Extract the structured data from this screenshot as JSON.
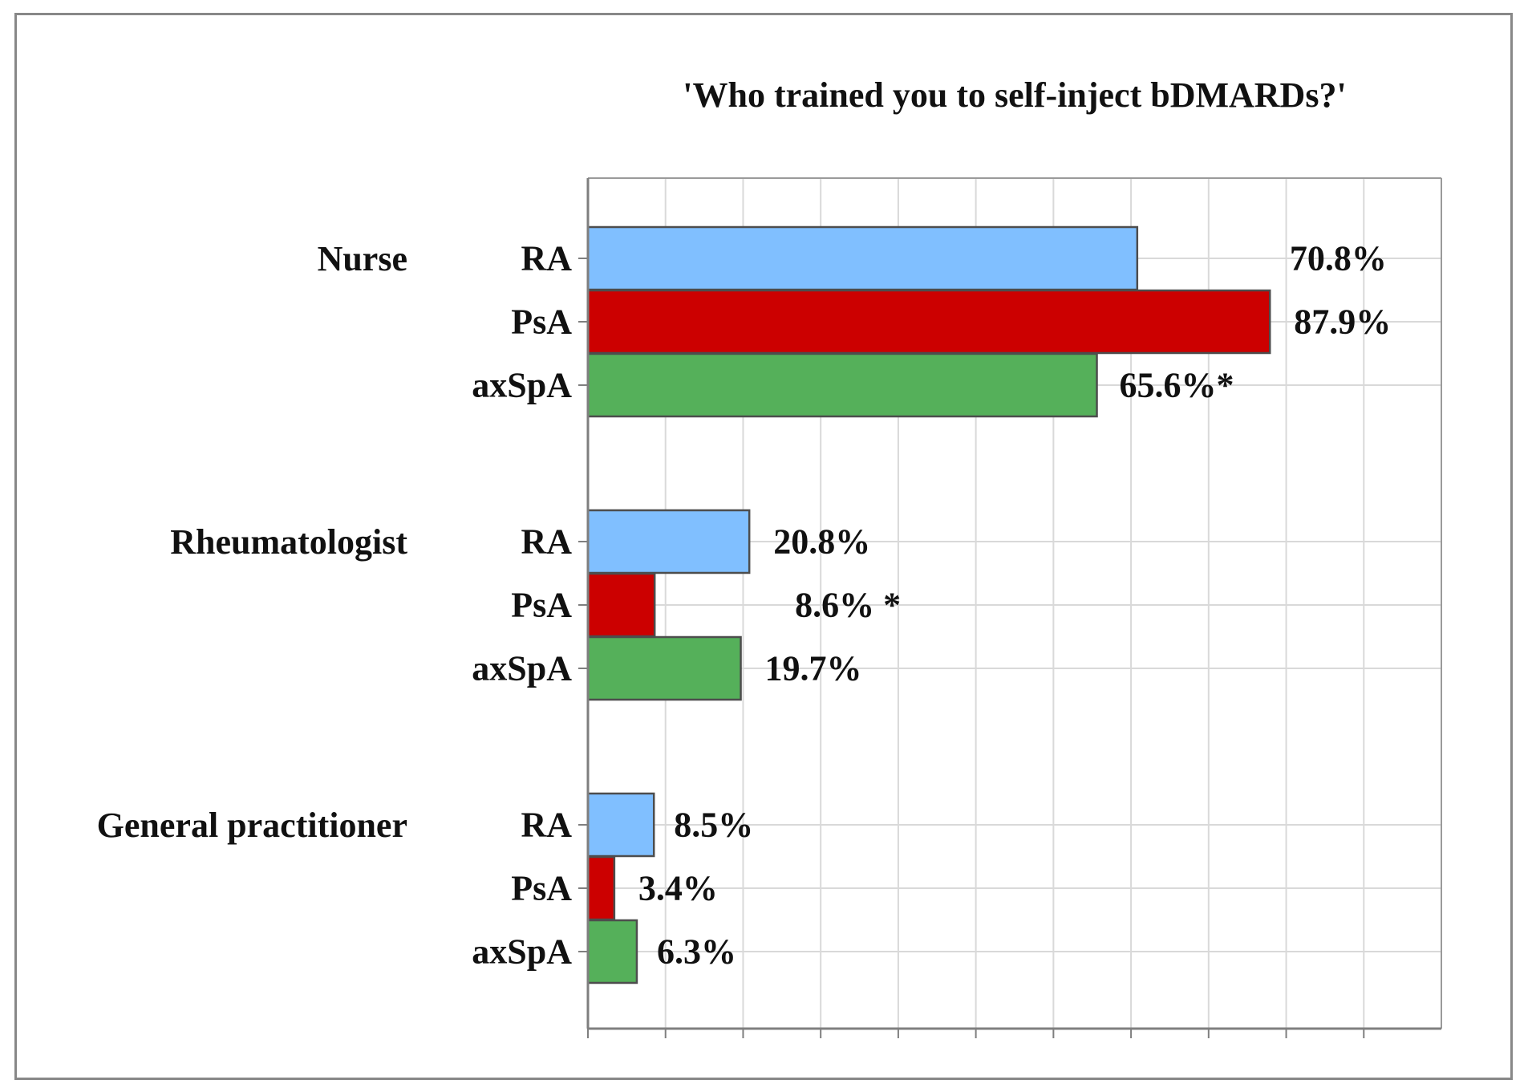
{
  "chart_data": {
    "type": "bar",
    "orientation": "horizontal",
    "title": "'Who trained you to self-inject bDMARDs?'",
    "xlabel": "",
    "ylabel": "",
    "xlim": [
      0,
      110
    ],
    "grid": true,
    "legend": "none",
    "categories": [
      "Nurse",
      "Rheumatologist",
      "General practitioner"
    ],
    "series": [
      {
        "name": "RA",
        "color": "#80bfff",
        "values": [
          70.8,
          20.8,
          8.5
        ],
        "labels": [
          "70.8%",
          "20.8%",
          "8.5%"
        ]
      },
      {
        "name": "PsA",
        "color": "#cc0000",
        "values": [
          87.9,
          8.6,
          3.4
        ],
        "labels": [
          "87.9%",
          "8.6% *",
          "3.4%"
        ]
      },
      {
        "name": "axSpA",
        "color": "#55b05a",
        "values": [
          65.6,
          19.7,
          6.3
        ],
        "labels": [
          "65.6%*",
          "19.7%",
          "6.3%"
        ]
      }
    ]
  }
}
